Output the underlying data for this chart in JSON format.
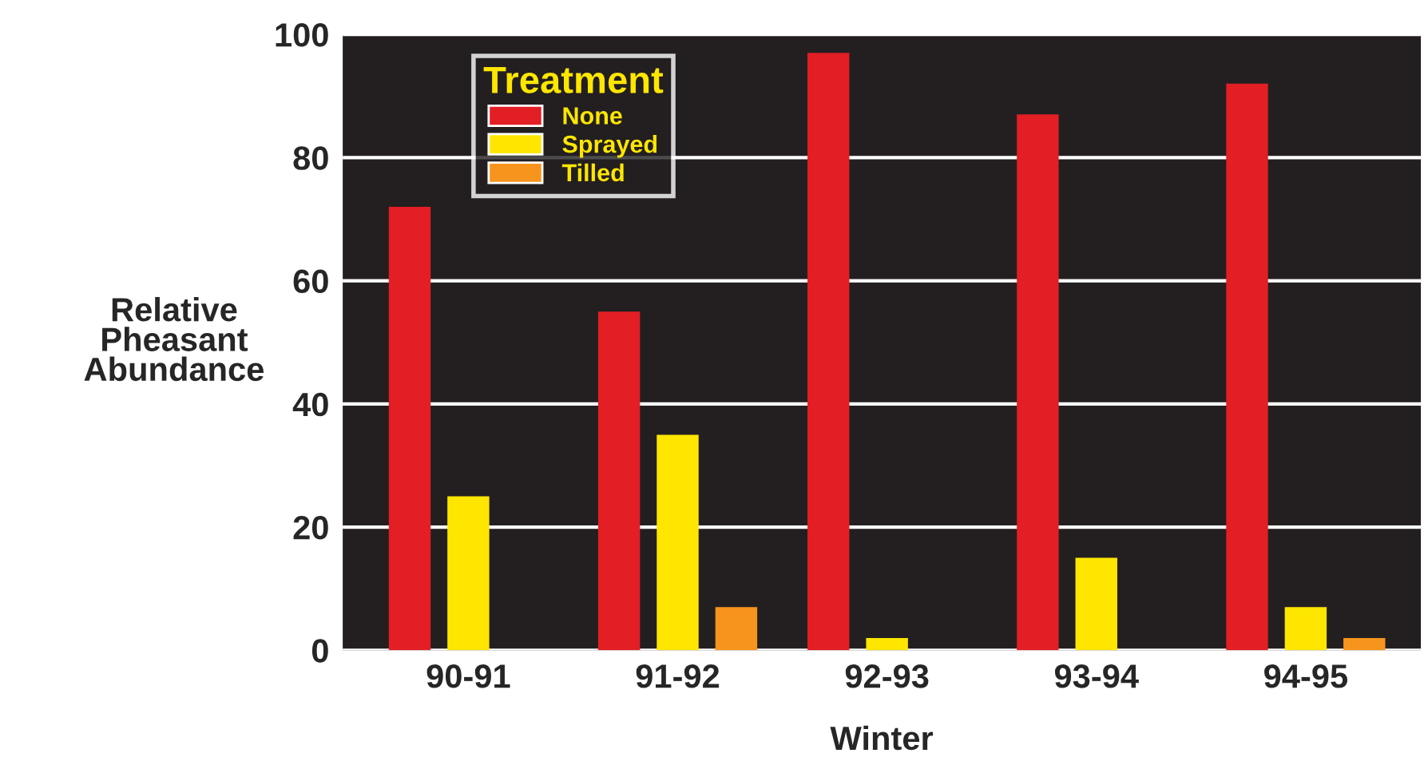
{
  "chart_data": {
    "type": "bar",
    "xlabel": "Winter",
    "ylabel": "Relative\nPheasant\nAbundance",
    "legend_title": "Treatment",
    "categories": [
      "90-91",
      "91-92",
      "92-93",
      "93-94",
      "94-95"
    ],
    "series": [
      {
        "name": "None",
        "color": "#e31e24",
        "values": [
          72,
          55,
          97,
          87,
          92
        ]
      },
      {
        "name": "Sprayed",
        "color": "#ffe600",
        "values": [
          25,
          35,
          2,
          15,
          7
        ]
      },
      {
        "name": "Tilled",
        "color": "#f7941d",
        "values": [
          0,
          7,
          0,
          0,
          2
        ]
      }
    ],
    "ylim": [
      0,
      100
    ],
    "yticks": [
      0,
      20,
      40,
      60,
      80,
      100
    ],
    "grid": "y",
    "legend": "top left"
  }
}
